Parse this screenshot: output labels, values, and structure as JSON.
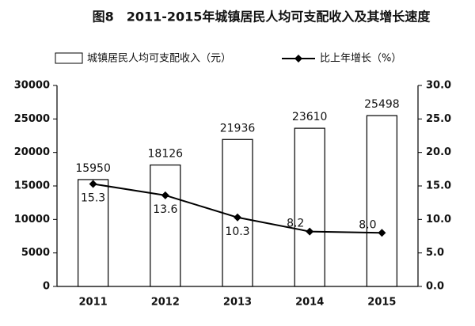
{
  "chart_data": {
    "type": "bar",
    "title": "图8　2011-2015年城镇居民人均可支配收入及其增长速度",
    "categories": [
      "2011",
      "2012",
      "2013",
      "2014",
      "2015"
    ],
    "series": [
      {
        "name": "城镇居民人均可支配收入（元）",
        "type": "bar",
        "color": "#ffffff",
        "values": [
          15950,
          18126,
          21936,
          23610,
          25498
        ]
      },
      {
        "name": "比上年增长（%）",
        "type": "line",
        "axis": "y2",
        "color": "#000000",
        "values": [
          15.3,
          13.6,
          10.3,
          8.2,
          8.0
        ],
        "value_labels": [
          "15.3",
          "13.6",
          "10.3",
          "8.2",
          "8.0"
        ]
      }
    ],
    "ylim": [
      0,
      30000
    ],
    "yticks": [
      0,
      5000,
      10000,
      15000,
      20000,
      25000,
      30000
    ],
    "y2lim": [
      0,
      30
    ],
    "y2ticks": [
      {
        "value": 0,
        "label": "0.0"
      },
      {
        "value": 5,
        "label": "5.0"
      },
      {
        "value": 10,
        "label": "10.0"
      },
      {
        "value": 15,
        "label": "15.0"
      },
      {
        "value": 20,
        "label": "20.0"
      },
      {
        "value": 25,
        "label": "25.0"
      },
      {
        "value": 30,
        "label": "30.0"
      }
    ],
    "legend": "top"
  }
}
